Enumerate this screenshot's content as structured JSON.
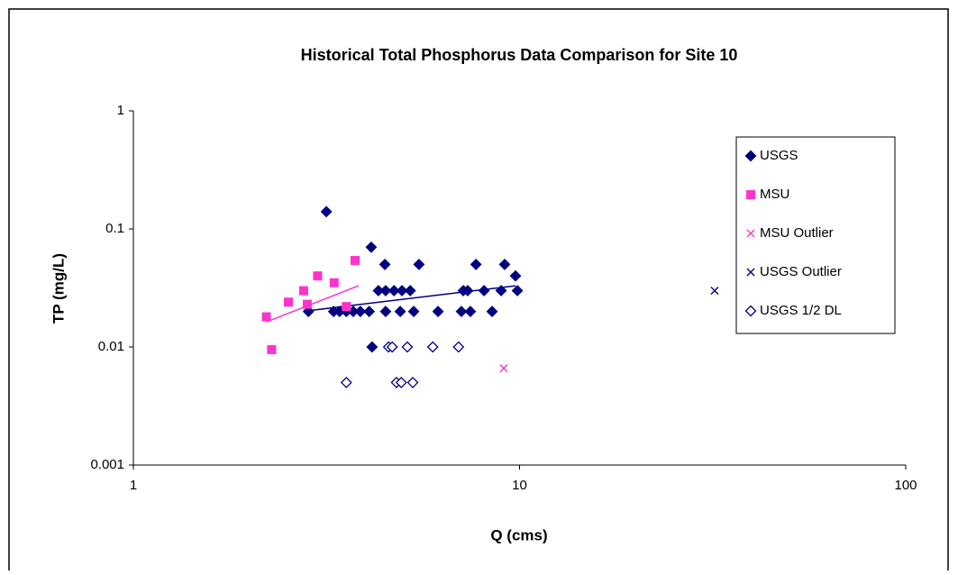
{
  "chart_data": {
    "type": "scatter",
    "title": "Historical Total Phosphorus Data Comparison for Site 10",
    "x_label": "Q (cms)",
    "y_label": "TP (mg/L)",
    "xscale": "log",
    "yscale": "log",
    "xlim": [
      1,
      100
    ],
    "ylim": [
      0.001,
      1
    ],
    "xticks": [
      1,
      10,
      100
    ],
    "yticks": [
      0.001,
      0.01,
      0.1,
      1
    ],
    "legend": "upper right",
    "series": [
      {
        "name": "USGS",
        "color": "#000080",
        "marker": "diamond",
        "x": [
          3.16,
          4.13,
          4.48,
          5.49,
          7.71,
          9.15,
          9.76,
          4.31,
          4.5,
          4.73,
          4.96,
          5.21,
          7.15,
          7.34,
          8.09,
          8.96,
          9.87,
          2.84,
          3.3,
          3.42,
          3.56,
          3.71,
          3.87,
          4.08,
          4.5,
          4.91,
          5.32,
          6.15,
          7.07,
          7.46,
          8.49,
          4.15
        ],
        "values": [
          0.14,
          0.07,
          0.05,
          0.05,
          0.05,
          0.05,
          0.04,
          0.03,
          0.03,
          0.03,
          0.03,
          0.03,
          0.03,
          0.03,
          0.03,
          0.03,
          0.03,
          0.02,
          0.02,
          0.02,
          0.02,
          0.02,
          0.02,
          0.02,
          0.02,
          0.02,
          0.02,
          0.02,
          0.02,
          0.02,
          0.02,
          0.01
        ]
      },
      {
        "name": "MSU",
        "color": "#ff33cc",
        "marker": "square",
        "x": [
          2.21,
          2.28,
          2.52,
          2.76,
          2.82,
          3.0,
          3.31,
          3.56,
          3.75
        ],
        "values": [
          0.018,
          0.0095,
          0.024,
          0.03,
          0.023,
          0.04,
          0.035,
          0.022,
          0.054
        ]
      },
      {
        "name": "MSU Outlier",
        "color": "#ff33cc",
        "marker": "x",
        "x": [
          9.1
        ],
        "values": [
          0.0066
        ]
      },
      {
        "name": "USGS Outlier",
        "color": "#000080",
        "marker": "x",
        "x": [
          32
        ],
        "values": [
          0.03
        ]
      },
      {
        "name": "USGS 1/2 DL",
        "color": "#000080",
        "marker": "open-diamond",
        "x": [
          4.58,
          4.68,
          5.12,
          5.96,
          6.95,
          3.56,
          4.8,
          4.94,
          5.29
        ],
        "values": [
          0.01,
          0.01,
          0.01,
          0.01,
          0.01,
          0.005,
          0.005,
          0.005,
          0.005
        ]
      }
    ],
    "trendlines": [
      {
        "color": "#ff33cc",
        "x": [
          2.21,
          3.83
        ],
        "values": [
          0.0163,
          0.033
        ]
      },
      {
        "color": "#000080",
        "x": [
          2.84,
          9.76
        ],
        "values": [
          0.0203,
          0.033
        ]
      }
    ]
  }
}
